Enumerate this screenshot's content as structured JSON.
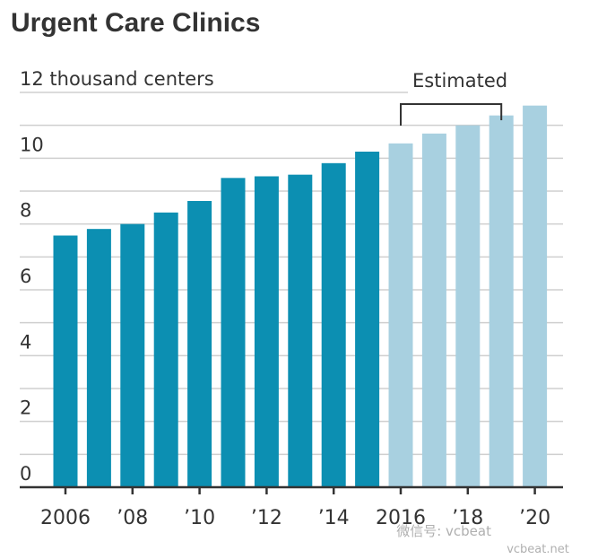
{
  "chart_data": {
    "type": "bar",
    "title": "Urgent Care Clinics",
    "unit_label": "12 thousand centers",
    "categories": [
      "2006",
      "2007",
      "2008",
      "2009",
      "2010",
      "2011",
      "2012",
      "2013",
      "2014",
      "2015",
      "2016",
      "2017",
      "2018",
      "2019",
      "2020"
    ],
    "x_tick_labels": [
      "2006",
      "",
      "’08",
      "",
      "’10",
      "",
      "’12",
      "",
      "’14",
      "",
      "2016",
      "",
      "’18",
      "",
      "’20"
    ],
    "values": [
      7.65,
      7.85,
      8.0,
      8.35,
      8.7,
      9.4,
      9.45,
      9.5,
      9.85,
      10.2,
      10.45,
      10.75,
      11.0,
      11.3,
      11.6
    ],
    "estimated_from_index": 10,
    "annotation": "Estimated",
    "y_ticks": [
      0,
      2,
      4,
      6,
      8,
      10,
      12
    ],
    "y_tick_labels": [
      "0",
      "2",
      "4",
      "6",
      "8",
      "10",
      "12"
    ],
    "ylim": [
      0,
      12
    ],
    "grid": true,
    "colors": {
      "actual": "#0c8fb2",
      "estimated": "#a8d0e0",
      "grid": "#cfcfcf",
      "axis": "#333333",
      "text": "#333333"
    }
  },
  "watermark": {
    "text": "微信号: vcbeat",
    "subtext": "vcbeat.net"
  }
}
